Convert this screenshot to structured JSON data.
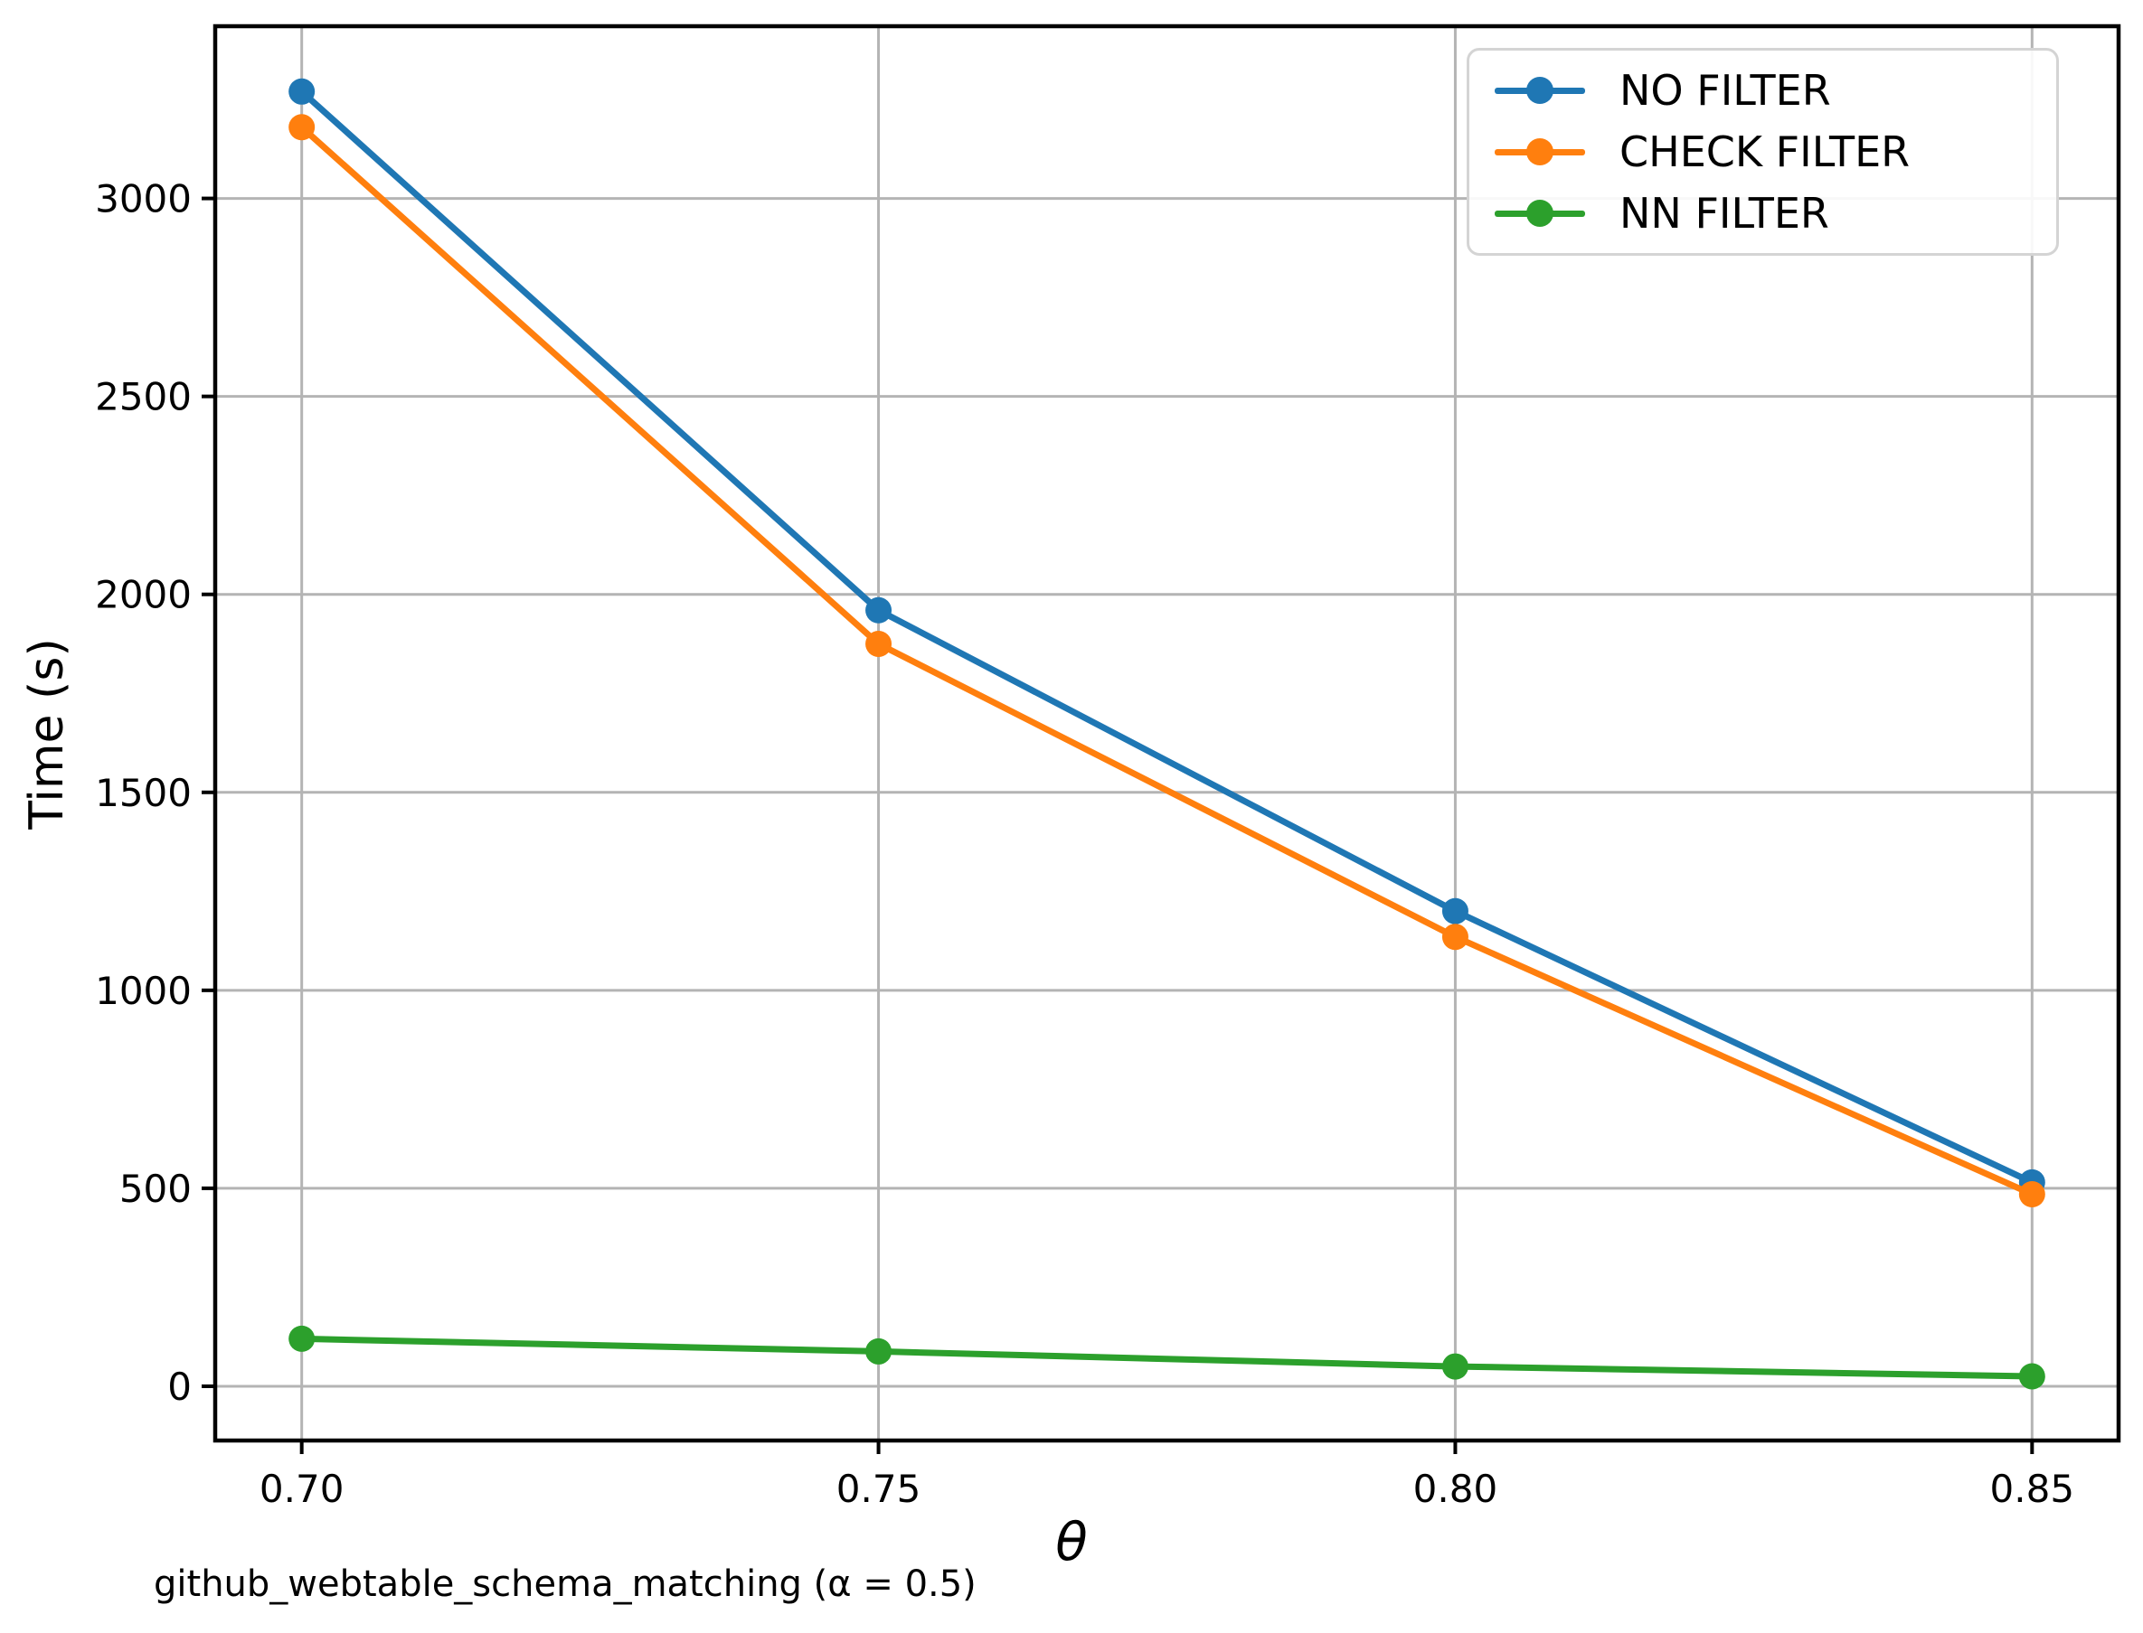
{
  "chart_data": {
    "type": "line",
    "x": [
      0.7,
      0.75,
      0.8,
      0.85
    ],
    "x_tick_labels": [
      "0.70",
      "0.75",
      "0.80",
      "0.85"
    ],
    "yticks": [
      0,
      500,
      1000,
      1500,
      2000,
      2500,
      3000
    ],
    "xlim": [
      0.6925,
      0.8575
    ],
    "ylim": [
      -137,
      3435
    ],
    "grid": true,
    "legend_position": "upper right",
    "xlabel": "θ",
    "ylabel": "Time (s)",
    "caption": "github_webtable_schema_matching (α = 0.5)",
    "series": [
      {
        "name": "NO FILTER",
        "color": "#1f77b4",
        "values": [
          3270,
          1960,
          1200,
          515
        ]
      },
      {
        "name": "CHECK FILTER",
        "color": "#ff7f0e",
        "values": [
          3180,
          1875,
          1135,
          485
        ]
      },
      {
        "name": "NN FILTER",
        "color": "#2ca02c",
        "values": [
          120,
          88,
          50,
          25
        ]
      }
    ],
    "styles": {
      "grid_color": "#b4b4b4",
      "spine_color": "#000000",
      "background": "#ffffff"
    }
  }
}
